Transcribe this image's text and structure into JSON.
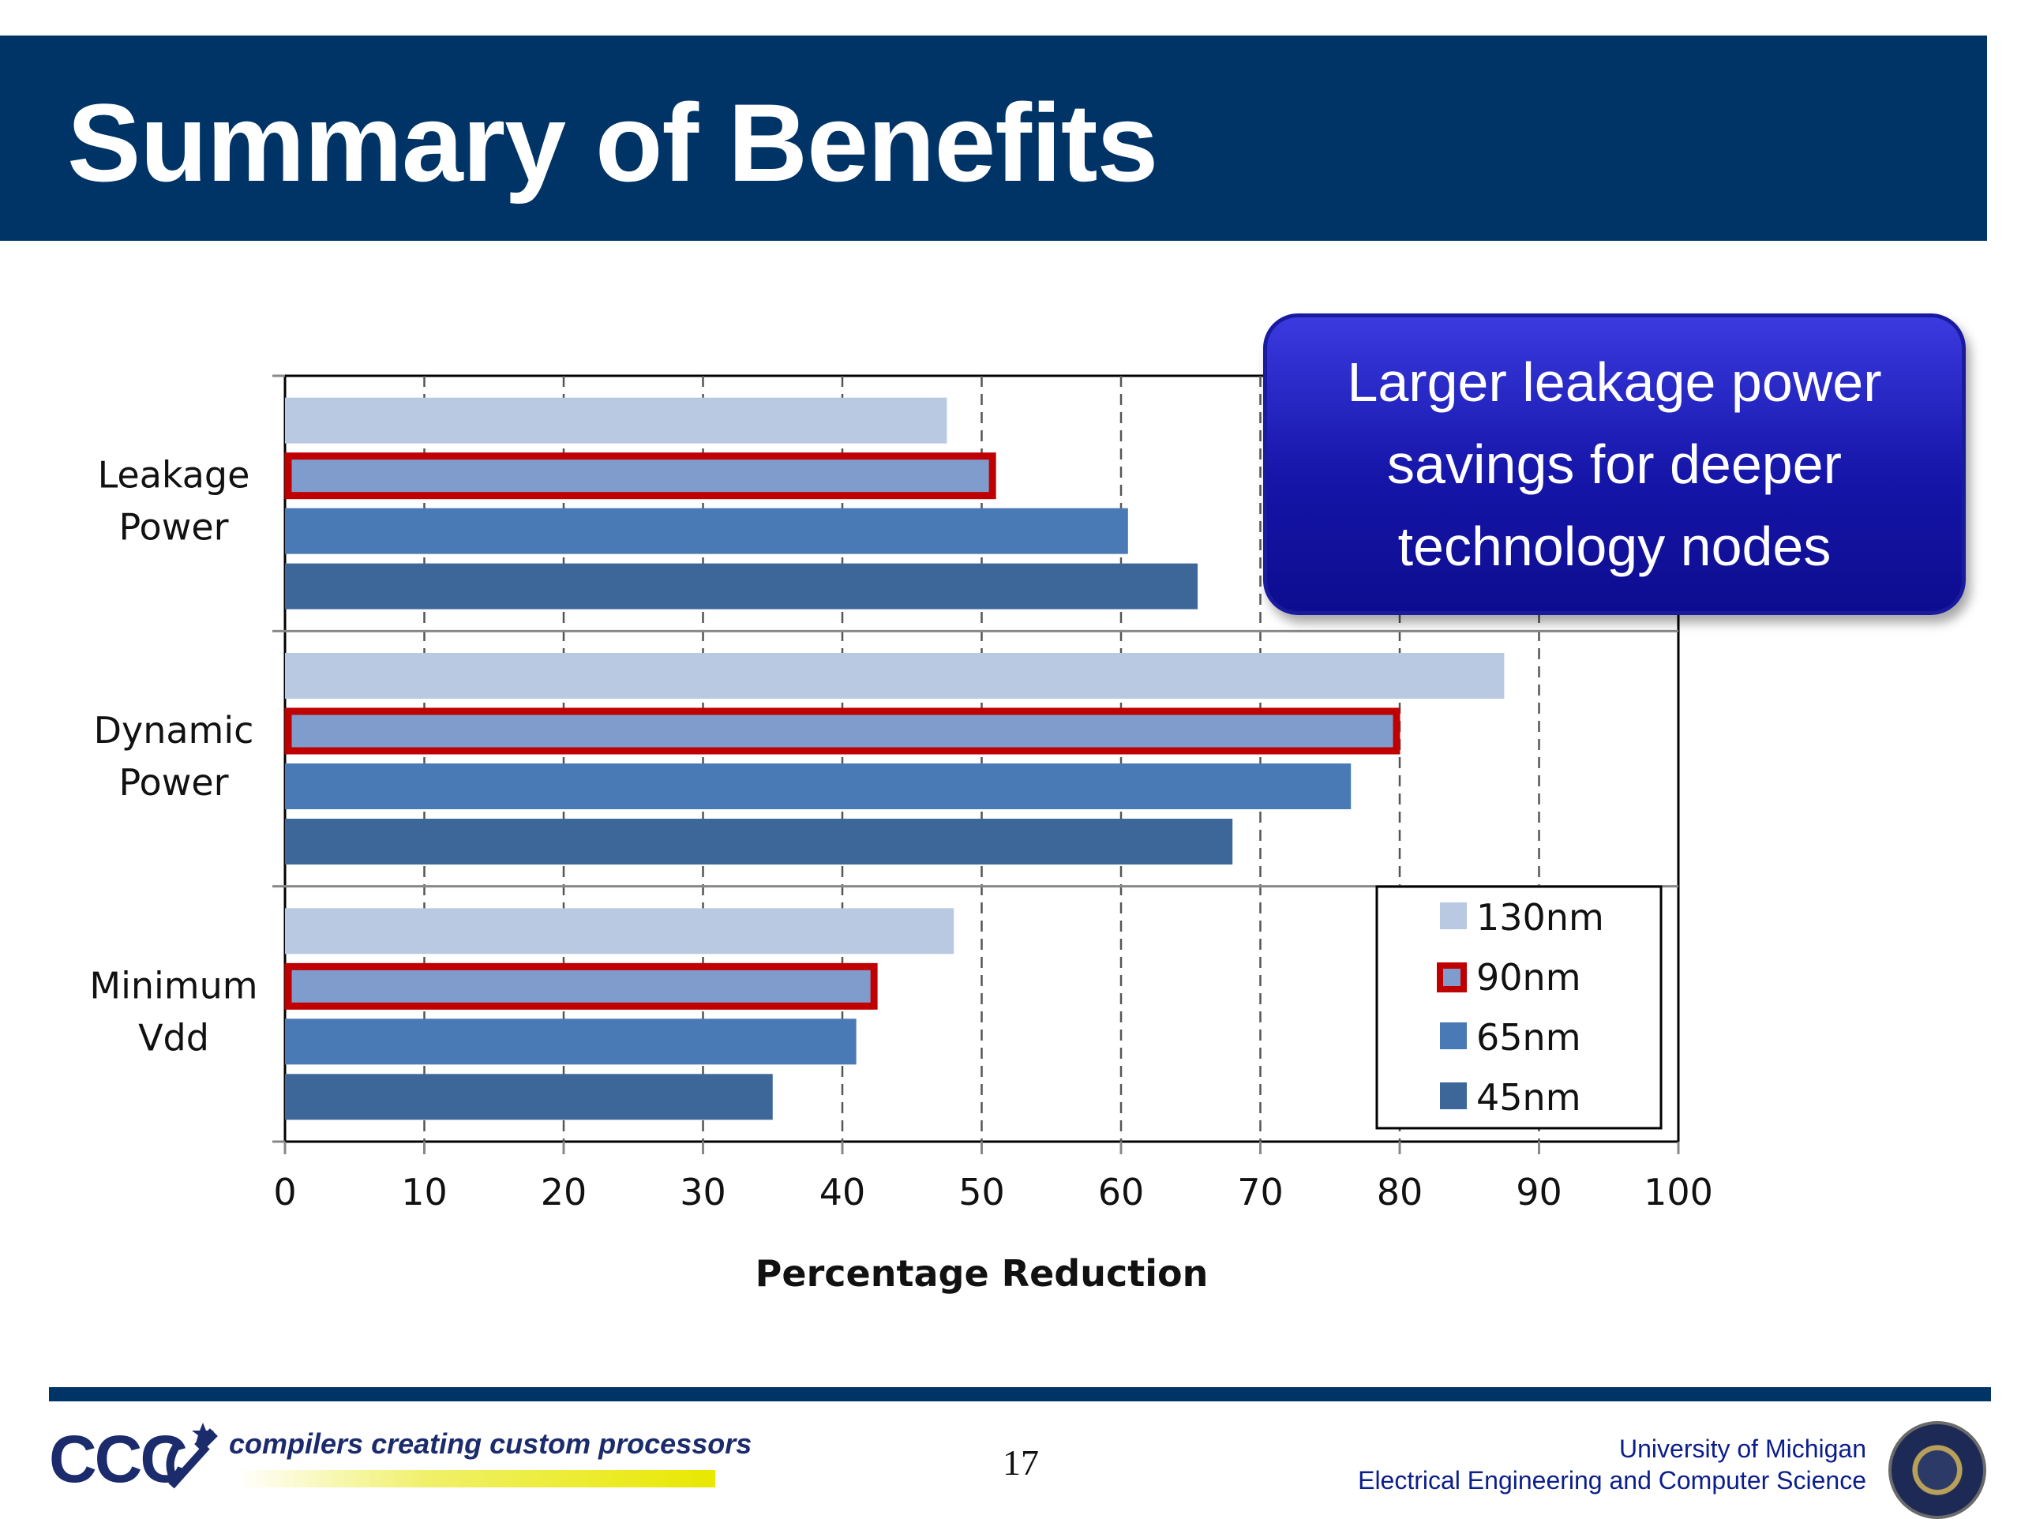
{
  "slide": {
    "title": "Summary of Benefits",
    "callout_lines": [
      "Larger leakage power",
      "savings for deeper",
      "technology nodes"
    ],
    "page_number": "17"
  },
  "footer": {
    "logo_text": "CCC",
    "tagline": "compilers creating custom processors",
    "university": "University of Michigan",
    "department": "Electrical Engineering and Computer Science"
  },
  "colors": {
    "title_bar": "#003466",
    "highlight_border": "#c00000",
    "s130": "#b9c9e2",
    "s90": "#7f9ccc",
    "s65": "#4a7ab5",
    "s45": "#3d6799"
  },
  "chart_data": {
    "type": "bar",
    "orientation": "horizontal",
    "categories": [
      [
        "Leakage",
        "Power"
      ],
      [
        "Dynamic",
        "Power"
      ],
      [
        "Minimum",
        "Vdd"
      ]
    ],
    "series": [
      {
        "name": "130nm",
        "values": [
          47.5,
          87.5,
          48
        ],
        "color": "#b9c9e2",
        "highlight": false
      },
      {
        "name": "90nm",
        "values": [
          51,
          80,
          42.5
        ],
        "color": "#7f9ccc",
        "highlight": true
      },
      {
        "name": "65nm",
        "values": [
          60.5,
          76.5,
          41
        ],
        "color": "#4a7ab5",
        "highlight": false
      },
      {
        "name": "45nm",
        "values": [
          65.5,
          68,
          35
        ],
        "color": "#3d6799",
        "highlight": false
      }
    ],
    "xlabel": "Percentage Reduction",
    "xlim": [
      0,
      100
    ],
    "xticks": [
      0,
      10,
      20,
      30,
      40,
      50,
      60,
      70,
      80,
      90,
      100
    ],
    "grid": "vertical dashed",
    "legend_position": "bottom-right"
  }
}
